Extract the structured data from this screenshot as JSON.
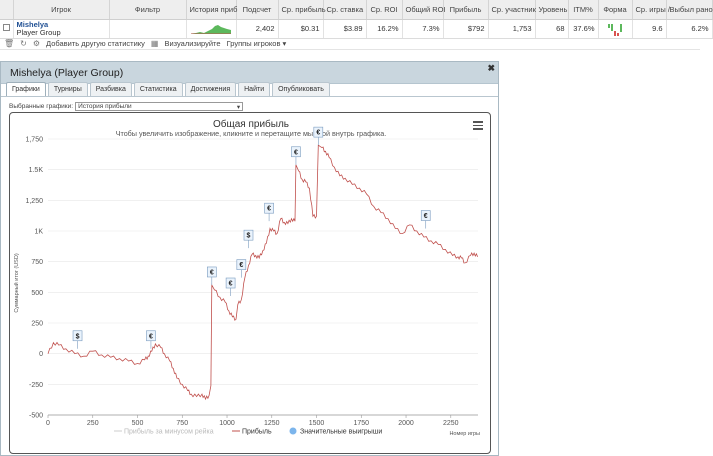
{
  "table": {
    "headers": [
      "Игрок",
      "Фильтр",
      "История приб",
      "Подсчет",
      "Ср. прибыль",
      "Ср. ставка",
      "Ср. ROI",
      "Общий ROI",
      "Прибыль",
      "Ср. участник",
      "Уровень",
      "ITM%",
      "Форма",
      "Ср. игры /",
      "Выбыл рано"
    ],
    "row": {
      "name": "Mishelya",
      "group": "Player Group",
      "count": "2,402",
      "avg_profit": "$0.31",
      "avg_stake": "$3.89",
      "avg_roi": "16.2%",
      "total_roi": "7.3%",
      "profit": "$792",
      "avg_entrants": "1,753",
      "level": "68",
      "itm": "37.6%",
      "avg_games": "9.6",
      "early_out": "6.2%"
    }
  },
  "toolbar": {
    "add_stat": "Добавить другую статистику",
    "visualize": "Визуализируйте",
    "groups": "Группы игроков ▾"
  },
  "popup": {
    "title": "Mishelya (Player Group)",
    "tabs": [
      "Графики",
      "Турниры",
      "Разбивка",
      "Статистика",
      "Достижения",
      "Найти",
      "Опубликовать"
    ],
    "select_label": "Выбранные графики:",
    "select_value": "История прибыли"
  },
  "chart_data": {
    "type": "line",
    "title": "Общая прибыль",
    "subtitle": "Чтобы увеличить изображение, кликните и перетащите мышкой внутрь графика.",
    "ylabel": "Суммарный итог (USD)",
    "xlabel": "Номер игры",
    "xlim": [
      0,
      2402
    ],
    "ylim": [
      -500,
      1750
    ],
    "x_ticks": [
      "0",
      "250",
      "500",
      "750",
      "1000",
      "1250",
      "1500",
      "1750",
      "2000",
      "2250"
    ],
    "y_ticks": [
      "-500",
      "-250",
      "0",
      "250",
      "500",
      "750",
      "1K",
      "1,250",
      "1.5K",
      "1,750"
    ],
    "legend": [
      "Прибыль за минусом рейка",
      "Прибыль",
      "Значительные выигрыши"
    ],
    "series": [
      {
        "name": "Прибыль",
        "color": "#c0504d",
        "x": [
          0,
          30,
          60,
          100,
          150,
          200,
          250,
          300,
          350,
          400,
          450,
          500,
          540,
          560,
          580,
          600,
          630,
          650,
          680,
          700,
          720,
          750,
          780,
          800,
          830,
          860,
          880,
          900,
          910,
          915,
          930,
          960,
          990,
          1010,
          1030,
          1050,
          1060,
          1080,
          1100,
          1120,
          1140,
          1160,
          1180,
          1200,
          1220,
          1240,
          1260,
          1280,
          1300,
          1320,
          1340,
          1360,
          1380,
          1385,
          1400,
          1420,
          1440,
          1460,
          1480,
          1500,
          1510,
          1520,
          1530,
          1550,
          1570,
          1600,
          1630,
          1660,
          1700,
          1740,
          1780,
          1820,
          1860,
          1900,
          1940,
          1980,
          2020,
          2060,
          2100,
          2140,
          2180,
          2220,
          2260,
          2290,
          2310,
          2330,
          2360,
          2380,
          2400
        ],
        "y": [
          0,
          90,
          70,
          40,
          0,
          -20,
          20,
          -10,
          -30,
          -40,
          -60,
          -80,
          -50,
          -20,
          20,
          80,
          50,
          0,
          -60,
          -120,
          -200,
          -250,
          -300,
          -330,
          -350,
          -330,
          -370,
          -340,
          -260,
          560,
          520,
          460,
          420,
          350,
          300,
          280,
          400,
          440,
          620,
          720,
          810,
          800,
          780,
          840,
          900,
          1020,
          1000,
          980,
          1100,
          1070,
          1060,
          1100,
          1080,
          1540,
          1490,
          1420,
          1400,
          1350,
          1120,
          1120,
          1700,
          1690,
          1680,
          1650,
          1600,
          1520,
          1450,
          1430,
          1380,
          1350,
          1300,
          1200,
          1150,
          1100,
          1020,
          980,
          1050,
          1000,
          950,
          920,
          890,
          850,
          800,
          790,
          780,
          740,
          800,
          820,
          790
        ]
      }
    ],
    "big_wins": [
      {
        "x": 165,
        "y": 40,
        "symbol": "$"
      },
      {
        "x": 575,
        "y": 40,
        "symbol": "€"
      },
      {
        "x": 915,
        "y": 560,
        "symbol": "€"
      },
      {
        "x": 1020,
        "y": 470,
        "symbol": "€"
      },
      {
        "x": 1080,
        "y": 620,
        "symbol": "€"
      },
      {
        "x": 1120,
        "y": 860,
        "symbol": "$"
      },
      {
        "x": 1235,
        "y": 1080,
        "symbol": "€"
      },
      {
        "x": 1385,
        "y": 1540,
        "symbol": "€"
      },
      {
        "x": 1510,
        "y": 1700,
        "symbol": "€"
      },
      {
        "x": 2110,
        "y": 1020,
        "symbol": "€"
      }
    ]
  }
}
